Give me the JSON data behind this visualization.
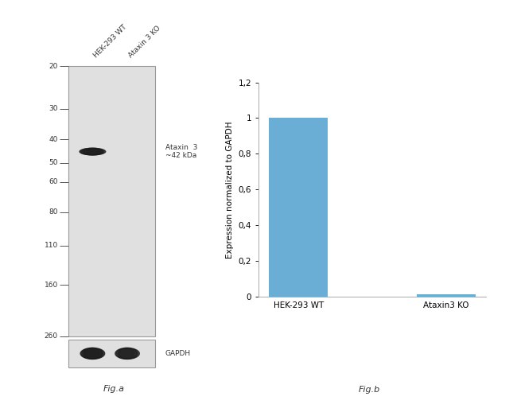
{
  "fig_width": 6.5,
  "fig_height": 5.18,
  "dpi": 100,
  "background_color": "#ffffff",
  "wb_panel": {
    "gel_color": "#e0e0e0",
    "gel_border": "#999999",
    "band_color": "#1a1a1a",
    "gapdh_band_color": "#1a1a1a",
    "mw_labels": [
      "260",
      "160",
      "110",
      "80",
      "60",
      "50",
      "40",
      "30",
      "20"
    ],
    "mw_y_data": [
      260,
      160,
      110,
      80,
      60,
      50,
      40,
      30,
      20
    ],
    "ataxin_band_mw": 45,
    "ataxin_label": "Ataxin  3\n~42 kDa",
    "gapdh_label": "GAPDH",
    "col_labels": [
      "HEK-293 WT",
      "Ataxin 3 KO"
    ],
    "label_figa": "Fig.a"
  },
  "bar_panel": {
    "categories": [
      "HEK-293 WT",
      "Ataxin3 KO"
    ],
    "values": [
      1.0,
      0.015
    ],
    "bar_color": "#6aaed6",
    "ylim": [
      0,
      1.2
    ],
    "yticks": [
      0,
      0.2,
      0.4,
      0.6,
      0.8,
      1.0,
      1.2
    ],
    "ylabel": "Expression normalized to GAPDH",
    "label_figb": "Fig.b"
  }
}
